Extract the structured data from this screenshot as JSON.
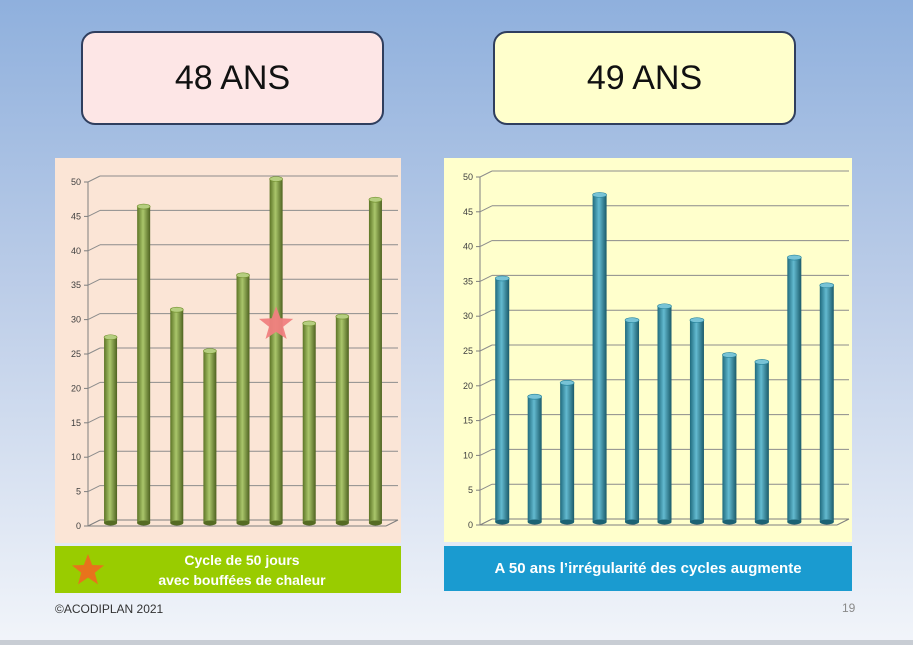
{
  "slide": {
    "left_title": "48 ANS",
    "right_title": "49 ANS",
    "left_caption_line1": "Cycle de 50 jours",
    "left_caption_line2": "avec bouffées de chaleur",
    "right_caption": "A 50 ans l’irrégularité des cycles augmente",
    "copyright": "©ACODIPLAN 2021",
    "page_number": "19",
    "colors": {
      "left_bar": "#8db33a",
      "right_bar": "#2fa3c0",
      "left_panel": "#fbe5d6",
      "right_panel": "#ffffcc",
      "left_caption_bg": "#99cc00",
      "right_caption_bg": "#1a9bd0",
      "star_marker": "#f08080",
      "caption_star": "#e8731c"
    }
  },
  "chart_data": [
    {
      "type": "bar",
      "title": "",
      "xlabel": "",
      "ylabel": "",
      "categories": [
        "",
        "",
        "",
        "",
        "",
        "",
        "",
        "",
        ""
      ],
      "values": [
        27,
        46,
        31,
        25,
        36,
        50,
        29,
        30,
        47
      ],
      "ylim": [
        0,
        50
      ],
      "yticks": [
        0,
        5,
        10,
        15,
        20,
        25,
        30,
        35,
        40,
        45,
        50
      ],
      "grid": true,
      "marker": {
        "shape": "star",
        "category_index": 5,
        "y": 29.3
      }
    },
    {
      "type": "bar",
      "title": "",
      "xlabel": "",
      "ylabel": "",
      "categories": [
        "",
        "",
        "",
        "",
        "",
        "",
        "",
        "",
        "",
        "",
        ""
      ],
      "values": [
        35,
        18,
        20,
        47,
        29,
        31,
        29,
        24,
        23,
        38,
        34
      ],
      "ylim": [
        0,
        50
      ],
      "yticks": [
        0,
        5,
        10,
        15,
        20,
        25,
        30,
        35,
        40,
        45,
        50
      ],
      "grid": true
    }
  ]
}
